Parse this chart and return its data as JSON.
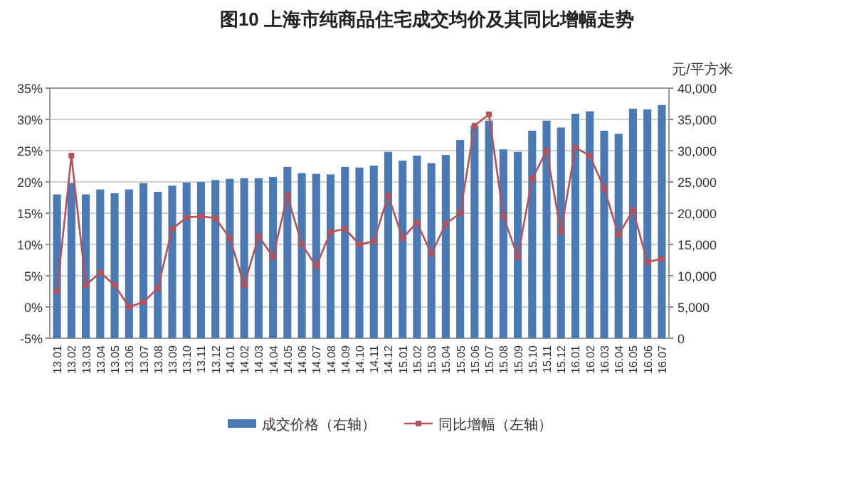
{
  "chart_data": {
    "type": "bar",
    "title": "图10  上海市纯商品住宅成交均价及其同比增幅走势",
    "y2label": "元/平方米",
    "categories": [
      "13.01",
      "13.02",
      "13.03",
      "13.04",
      "13.05",
      "13.06",
      "13.07",
      "13.08",
      "13.09",
      "13.10",
      "13.11",
      "13.12",
      "14.01",
      "14.02",
      "14.03",
      "14.04",
      "14.05",
      "14.06",
      "14.07",
      "14.08",
      "14.09",
      "14.10",
      "14.11",
      "14.12",
      "15.01",
      "15.02",
      "15.03",
      "15.04",
      "15.05",
      "15.06",
      "15.07",
      "15.08",
      "15.09",
      "15.10",
      "15.11",
      "15.12",
      "16.01",
      "16.02",
      "16.03",
      "16.04",
      "16.05",
      "16.06",
      "16.07"
    ],
    "series": [
      {
        "name": "成交价格（右轴）",
        "axis": "y2",
        "color": "#4a7ab5",
        "values": [
          23000,
          24800,
          23000,
          23800,
          23200,
          23800,
          24800,
          23400,
          24400,
          24900,
          25000,
          25300,
          25500,
          25600,
          25600,
          25800,
          27400,
          26400,
          26300,
          26200,
          27400,
          27300,
          27600,
          29800,
          28400,
          29200,
          28000,
          29300,
          31700,
          34000,
          34800,
          30200,
          29800,
          33200,
          34800,
          33700,
          35900,
          36300,
          33200,
          32700,
          36700,
          36600,
          37300
        ]
      },
      {
        "name": "同比增幅（左轴）",
        "type": "line",
        "color": "#b5515a",
        "marker": "square",
        "values": [
          2.5,
          24.2,
          3.5,
          5.5,
          3.5,
          0,
          0.8,
          3,
          12.5,
          14.3,
          14.5,
          14.2,
          11,
          3.5,
          11.3,
          8,
          17.8,
          10,
          6.5,
          12,
          12.5,
          10,
          10.5,
          17.8,
          11,
          13.5,
          8.5,
          13.3,
          15,
          29,
          30.8,
          14.5,
          8,
          20.5,
          25,
          12,
          25.5,
          24.2,
          19,
          11.5,
          15.5,
          7.2,
          7.7
        ]
      }
    ],
    "ylim": [
      -5,
      35
    ],
    "yticks": [
      {
        "value": -5,
        "label": "-5%"
      },
      {
        "value": 0,
        "label": "0%"
      },
      {
        "value": 5,
        "label": "5%"
      },
      {
        "value": 10,
        "label": "10%"
      },
      {
        "value": 15,
        "label": "15%"
      },
      {
        "value": 20,
        "label": "20%"
      },
      {
        "value": 25,
        "label": "25%"
      },
      {
        "value": 30,
        "label": "30%"
      },
      {
        "value": 35,
        "label": "35%"
      }
    ],
    "y2lim": [
      0,
      40000
    ],
    "y2ticks": [
      0,
      {
        "value": 5000,
        "label": "5,000"
      },
      {
        "value": 10000,
        "label": "10,000"
      },
      {
        "value": 15000,
        "label": "15,000"
      },
      {
        "value": 20000,
        "label": "20,000"
      },
      {
        "value": 25000,
        "label": "25,000"
      },
      {
        "value": 30000,
        "label": "30,000"
      },
      {
        "value": 35000,
        "label": "35,000"
      },
      {
        "value": 40000,
        "label": "40,000"
      }
    ],
    "grid": "y",
    "legend": "bottom"
  }
}
